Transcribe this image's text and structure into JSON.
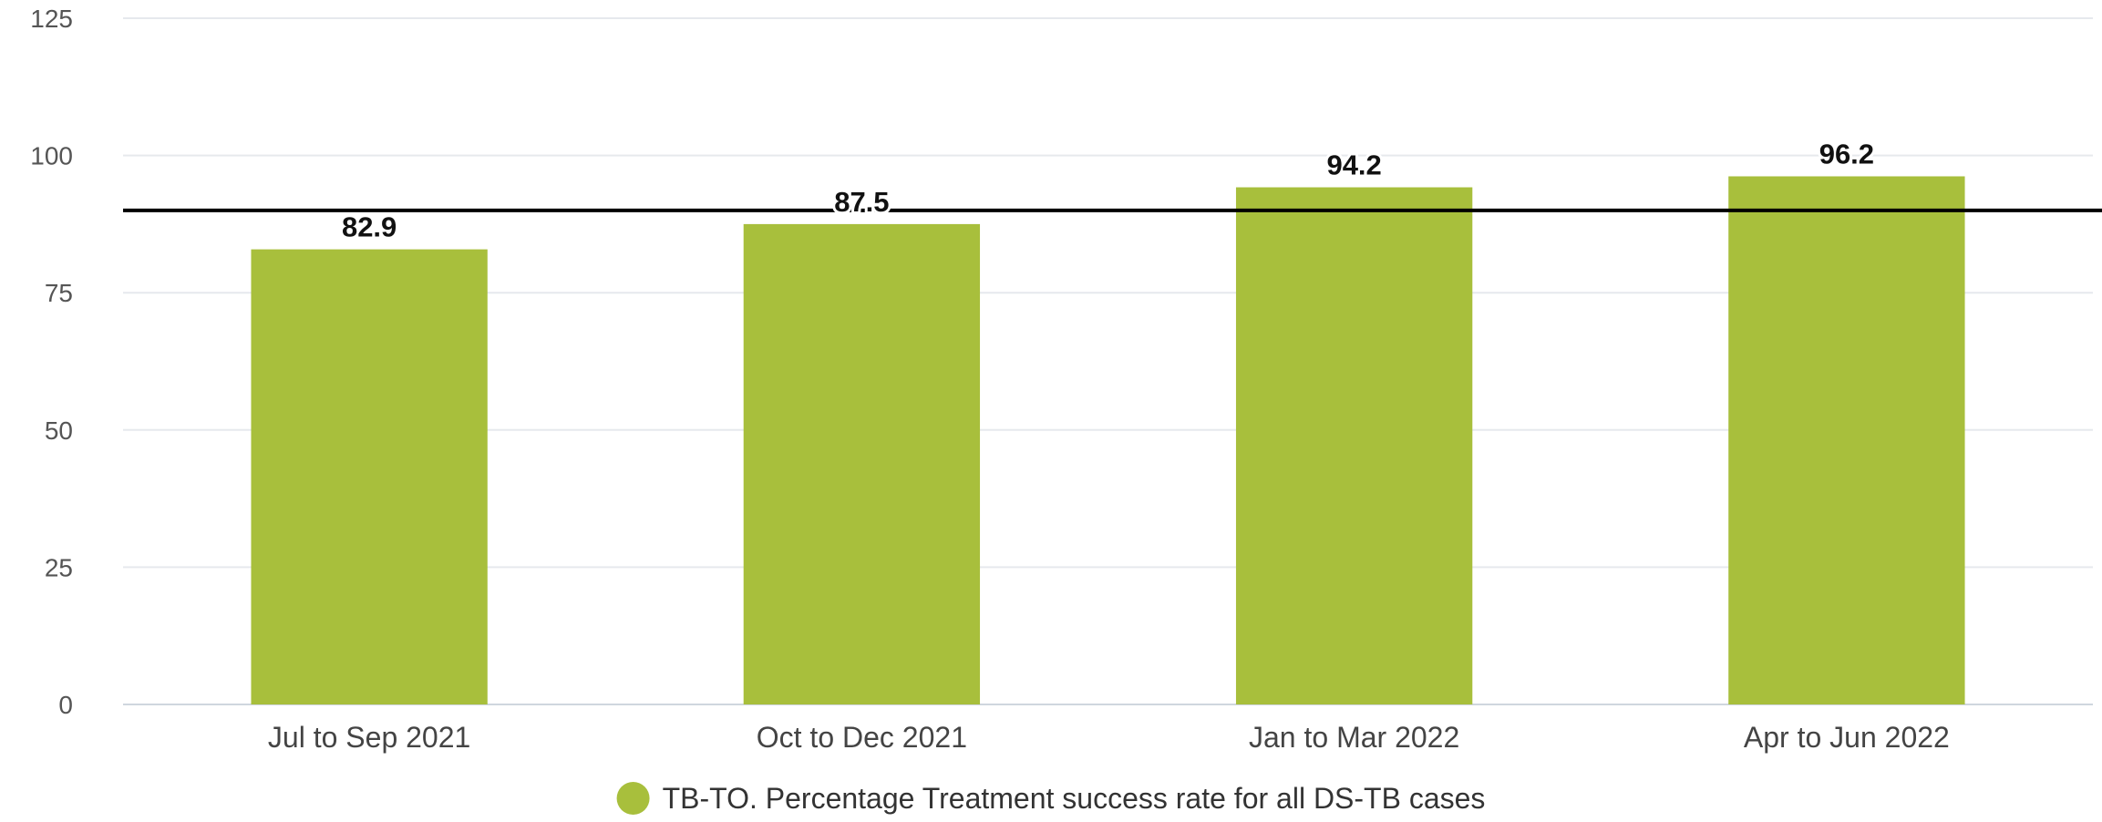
{
  "chart_data": {
    "type": "bar",
    "categories": [
      "Jul to Sep 2021",
      "Oct to Dec 2021",
      "Jan to Mar 2022",
      "Apr to Jun 2022"
    ],
    "series": [
      {
        "name": "TB-TO. Percentage Treatment success rate for all DS-TB cases",
        "values": [
          82.9,
          87.5,
          94.2,
          96.2
        ],
        "color": "#a8bf3c"
      }
    ],
    "data_labels": [
      "82.9",
      "87.5",
      "94.2",
      "96.2"
    ],
    "ylim": [
      0,
      125
    ],
    "yticks": [
      0,
      25,
      50,
      75,
      100,
      125
    ],
    "reference_line": {
      "value": 90,
      "color": "#000000"
    },
    "grid": true,
    "gridline_color": "#e6e9ed",
    "legend_position": "bottom-center",
    "title": "",
    "xlabel": "",
    "ylabel": ""
  }
}
